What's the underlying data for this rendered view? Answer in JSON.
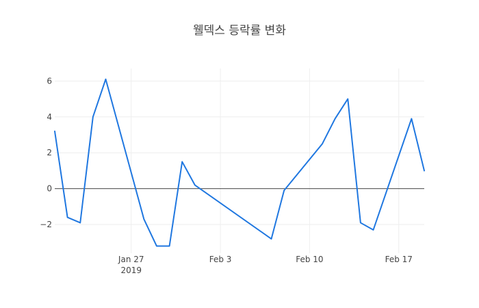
{
  "chart_data": {
    "type": "line",
    "title": "웰덱스 등락률 변화",
    "xlabel": "",
    "ylabel": "",
    "x": [
      "2019-01-21",
      "2019-01-22",
      "2019-01-23",
      "2019-01-24",
      "2019-01-25",
      "2019-01-28",
      "2019-01-29",
      "2019-01-30",
      "2019-01-31",
      "2019-02-01",
      "2019-02-07",
      "2019-02-08",
      "2019-02-11",
      "2019-02-12",
      "2019-02-13",
      "2019-02-14",
      "2019-02-15",
      "2019-02-18",
      "2019-02-19"
    ],
    "series": [
      {
        "values": [
          3.2,
          -1.6,
          -1.9,
          4.0,
          6.1,
          -1.7,
          -3.2,
          -3.2,
          1.5,
          0.2,
          -2.8,
          -0.1,
          2.5,
          3.9,
          5.0,
          -1.9,
          -2.3,
          3.9,
          1.0
        ],
        "color": "#1f77e0"
      }
    ],
    "xlim": [
      "2019-01-21",
      "2019-02-19"
    ],
    "ylim": [
      -3.6,
      6.7
    ],
    "x_ticks": [
      {
        "date": "2019-01-27",
        "label": "Jan 27",
        "sublabel": "2019"
      },
      {
        "date": "2019-02-03",
        "label": "Feb 3",
        "sublabel": ""
      },
      {
        "date": "2019-02-10",
        "label": "Feb 10",
        "sublabel": ""
      },
      {
        "date": "2019-02-17",
        "label": "Feb 17",
        "sublabel": ""
      }
    ],
    "y_ticks": [
      {
        "value": -2,
        "label": "−2"
      },
      {
        "value": 0,
        "label": "0"
      },
      {
        "value": 2,
        "label": "2"
      },
      {
        "value": 4,
        "label": "4"
      },
      {
        "value": 6,
        "label": "6"
      }
    ],
    "grid": true,
    "zero_line": true,
    "gridColor": "#eeeeee",
    "zeroLineColor": "#444444"
  }
}
